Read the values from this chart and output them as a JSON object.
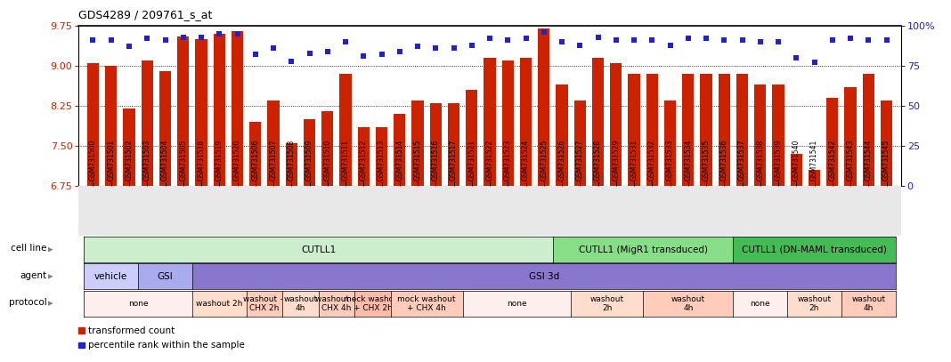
{
  "title": "GDS4289 / 209761_s_at",
  "samples": [
    "GSM731500",
    "GSM731501",
    "GSM731502",
    "GSM731503",
    "GSM731504",
    "GSM731505",
    "GSM731518",
    "GSM731519",
    "GSM731520",
    "GSM731506",
    "GSM731507",
    "GSM731508",
    "GSM731509",
    "GSM731510",
    "GSM731511",
    "GSM731512",
    "GSM731513",
    "GSM731514",
    "GSM731515",
    "GSM731516",
    "GSM731517",
    "GSM731521",
    "GSM731522",
    "GSM731523",
    "GSM731524",
    "GSM731525",
    "GSM731526",
    "GSM731527",
    "GSM731528",
    "GSM731529",
    "GSM731531",
    "GSM731532",
    "GSM731533",
    "GSM731534",
    "GSM731535",
    "GSM731536",
    "GSM731537",
    "GSM731538",
    "GSM731539",
    "GSM731540",
    "GSM731541",
    "GSM731542",
    "GSM731543",
    "GSM731544",
    "GSM731545"
  ],
  "bar_values": [
    9.05,
    9.0,
    8.2,
    9.1,
    8.9,
    9.55,
    9.5,
    9.6,
    9.65,
    7.95,
    8.35,
    7.55,
    8.0,
    8.15,
    8.85,
    7.85,
    7.85,
    8.1,
    8.35,
    8.3,
    8.3,
    8.55,
    9.15,
    9.1,
    9.15,
    9.7,
    8.65,
    8.35,
    9.15,
    9.05,
    8.85,
    8.85,
    8.35,
    8.85,
    8.85,
    8.85,
    8.85,
    8.65,
    8.65,
    7.35,
    7.05,
    8.4,
    8.6,
    8.85,
    8.35
  ],
  "percentile_values": [
    91,
    91,
    87,
    92,
    91,
    93,
    93,
    95,
    95,
    82,
    86,
    78,
    83,
    84,
    90,
    81,
    82,
    84,
    87,
    86,
    86,
    88,
    92,
    91,
    92,
    96,
    90,
    88,
    93,
    91,
    91,
    91,
    88,
    92,
    92,
    91,
    91,
    90,
    90,
    80,
    77,
    91,
    92,
    91,
    91
  ],
  "ylim_left": [
    6.75,
    9.75
  ],
  "ylim_right": [
    0,
    100
  ],
  "yticks_left": [
    6.75,
    7.5,
    8.25,
    9.0,
    9.75
  ],
  "yticks_right": [
    0,
    25,
    50,
    75,
    100
  ],
  "bar_color": "#cc2200",
  "dot_color": "#2222cc",
  "bar_bottom": 6.75,
  "cell_line_groups": [
    {
      "label": "CUTLL1",
      "start": 0,
      "end": 26,
      "color": "#cceecc"
    },
    {
      "label": "CUTLL1 (MigR1 transduced)",
      "start": 26,
      "end": 36,
      "color": "#88dd88"
    },
    {
      "label": "CUTLL1 (DN-MAML transduced)",
      "start": 36,
      "end": 45,
      "color": "#44bb55"
    }
  ],
  "agent_groups": [
    {
      "label": "vehicle",
      "start": 0,
      "end": 3,
      "color": "#ccccff"
    },
    {
      "label": "GSI",
      "start": 3,
      "end": 6,
      "color": "#aaaaee"
    },
    {
      "label": "GSI 3d",
      "start": 6,
      "end": 45,
      "color": "#8877cc"
    }
  ],
  "protocol_groups": [
    {
      "label": "none",
      "start": 0,
      "end": 6,
      "color": "#ffeeee"
    },
    {
      "label": "washout 2h",
      "start": 6,
      "end": 9,
      "color": "#ffddcc"
    },
    {
      "label": "washout +\nCHX 2h",
      "start": 9,
      "end": 11,
      "color": "#ffccbb"
    },
    {
      "label": "washout\n4h",
      "start": 11,
      "end": 13,
      "color": "#ffddcc"
    },
    {
      "label": "washout +\nCHX 4h",
      "start": 13,
      "end": 15,
      "color": "#ffccbb"
    },
    {
      "label": "mock washout\n+ CHX 2h",
      "start": 15,
      "end": 17,
      "color": "#ffbbaa"
    },
    {
      "label": "mock washout\n+ CHX 4h",
      "start": 17,
      "end": 21,
      "color": "#ffccbb"
    },
    {
      "label": "none",
      "start": 21,
      "end": 27,
      "color": "#ffeeee"
    },
    {
      "label": "washout\n2h",
      "start": 27,
      "end": 31,
      "color": "#ffddcc"
    },
    {
      "label": "washout\n4h",
      "start": 31,
      "end": 36,
      "color": "#ffccbb"
    },
    {
      "label": "none",
      "start": 36,
      "end": 39,
      "color": "#ffeeee"
    },
    {
      "label": "washout\n2h",
      "start": 39,
      "end": 42,
      "color": "#ffddcc"
    },
    {
      "label": "washout\n4h",
      "start": 42,
      "end": 45,
      "color": "#ffccbb"
    }
  ],
  "legend_items": [
    {
      "label": "transformed count",
      "color": "#cc2200"
    },
    {
      "label": "percentile rank within the sample",
      "color": "#2222cc"
    }
  ],
  "fig_width": 10.47,
  "fig_height": 4.14,
  "dpi": 100
}
